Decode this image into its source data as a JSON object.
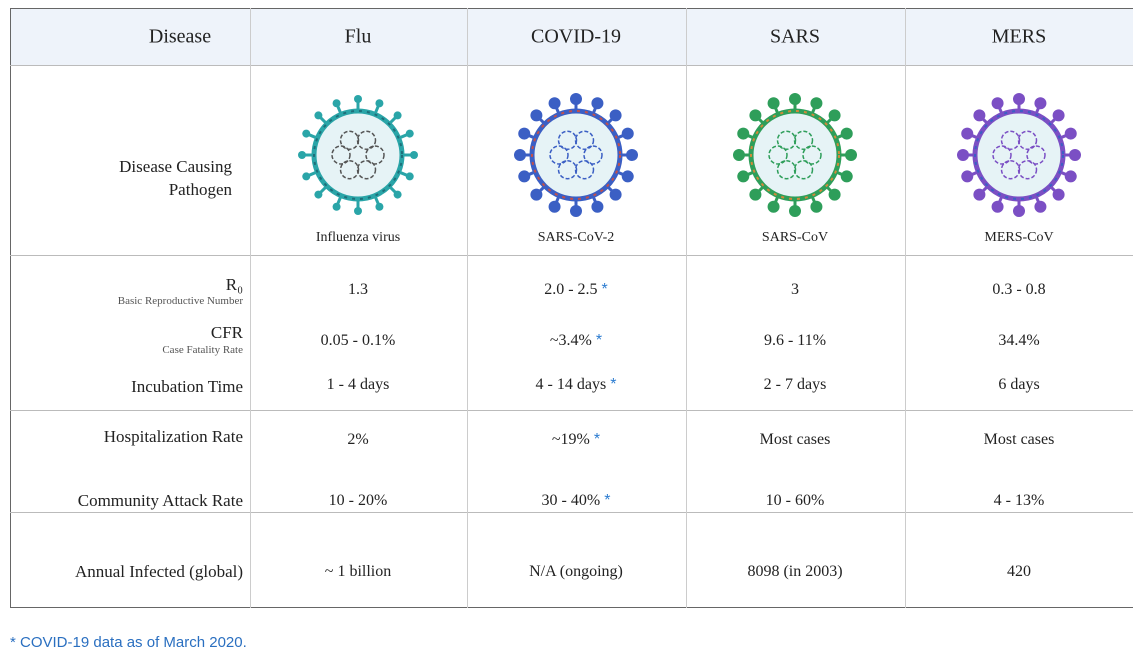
{
  "header": [
    "Disease",
    "Flu",
    "COVID-19",
    "SARS",
    "MERS"
  ],
  "pathogen": {
    "label": "Disease Causing Pathogen",
    "names": [
      "Influenza virus",
      "SARS-CoV-2",
      "SARS-CoV",
      "MERS-CoV"
    ]
  },
  "rows": [
    {
      "label": "R₀",
      "sublabel": "Basic Reproductive Number",
      "values": [
        "1.3",
        "2.0 - 2.5",
        "3",
        "0.3 - 0.8"
      ]
    },
    {
      "label": "CFR",
      "sublabel": "Case Fatality Rate",
      "values": [
        "0.05 - 0.1%",
        "~3.4%",
        "9.6 - 11%",
        "34.4%"
      ]
    },
    {
      "label": "Incubation Time",
      "values": [
        "1 - 4 days",
        "4 - 14 days",
        "2 - 7 days",
        "6 days"
      ]
    },
    {
      "label": "Hospitalization Rate",
      "values": [
        "2%",
        "~19%",
        "Most cases",
        "Most cases"
      ]
    },
    {
      "label": "Community Attack Rate",
      "values": [
        "10 - 20%",
        "30 - 40%",
        "10 - 60%",
        "4 - 13%"
      ]
    },
    {
      "label": "Annual Infected (global)",
      "values": [
        "~ 1 billion",
        "N/A (ongoing)",
        "8098 (in 2003)",
        "420"
      ]
    }
  ],
  "note_marker": "*",
  "footnote": "* COVID-19 data as of March 2020."
}
